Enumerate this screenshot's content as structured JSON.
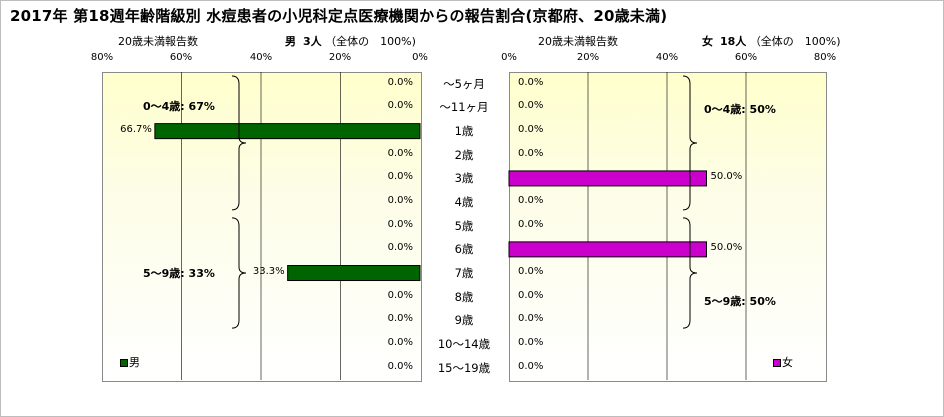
{
  "title": "2017年 第18週年齢階級別 水痘患者の小児科定点医療機関からの報告割合(京都府、20歳未満)",
  "male": {
    "axis_caption": "20歳未満報告数",
    "header_label": "男",
    "header_count": "3人",
    "header_total": "（全体の　100%)",
    "ticks": [
      "80%",
      "60%",
      "40%",
      "20%",
      "0%"
    ],
    "legend": "男",
    "group_notes": [
      "0～4歳: 67%",
      "5～9歳: 33%"
    ],
    "color": "#006400"
  },
  "female": {
    "axis_caption": "20歳未満報告数",
    "header_label": "女",
    "header_count": "18人",
    "header_total": "（全体の　100%)",
    "ticks": [
      "0%",
      "20%",
      "40%",
      "60%",
      "80%"
    ],
    "legend": "女",
    "group_notes": [
      "0～4歳: 50%",
      "5～9歳: 50%"
    ],
    "color": "#cc00cc"
  },
  "chart_data": {
    "type": "bar",
    "categories": [
      "～5ヶ月",
      "～11ヶ月",
      "1歳",
      "2歳",
      "3歳",
      "4歳",
      "5歳",
      "6歳",
      "7歳",
      "8歳",
      "9歳",
      "10～14歳",
      "15～19歳"
    ],
    "series": [
      {
        "name": "男",
        "values": [
          0.0,
          0.0,
          66.7,
          0.0,
          0.0,
          0.0,
          0.0,
          0.0,
          33.3,
          0.0,
          0.0,
          0.0,
          0.0
        ],
        "labels": [
          "0.0%",
          "0.0%",
          "66.7%",
          "0.0%",
          "0.0%",
          "0.0%",
          "0.0%",
          "0.0%",
          "33.3%",
          "0.0%",
          "0.0%",
          "0.0%",
          "0.0%"
        ]
      },
      {
        "name": "女",
        "values": [
          0.0,
          0.0,
          0.0,
          0.0,
          50.0,
          0.0,
          0.0,
          50.0,
          0.0,
          0.0,
          0.0,
          0.0,
          0.0
        ],
        "labels": [
          "0.0%",
          "0.0%",
          "0.0%",
          "0.0%",
          "50.0%",
          "0.0%",
          "0.0%",
          "50.0%",
          "0.0%",
          "0.0%",
          "0.0%",
          "0.0%",
          "0.0%"
        ]
      }
    ],
    "xlim": [
      0,
      80
    ],
    "grid": true
  }
}
